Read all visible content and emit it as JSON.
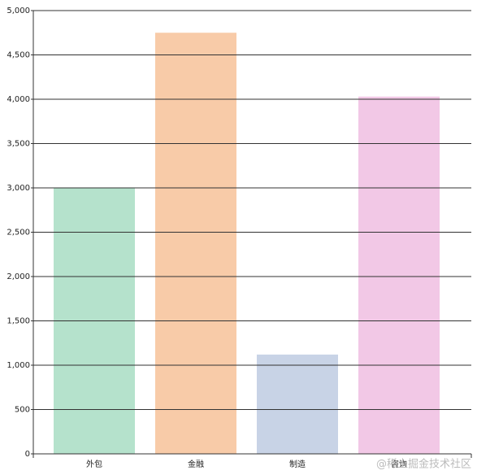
{
  "chart_data": {
    "type": "bar",
    "categories": [
      "外包",
      "金融",
      "制造",
      "咨询"
    ],
    "values": [
      3000,
      4750,
      1120,
      4030
    ],
    "colors": [
      "#b5e2cc",
      "#f8cba8",
      "#c8d3e6",
      "#f2c8e6"
    ],
    "ylim": [
      0,
      5000
    ],
    "yticks": [
      0,
      500,
      {
        "value": 1000,
        "label": "1,000"
      },
      {
        "value": 1500,
        "label": "1,500"
      },
      {
        "value": 2000,
        "label": "2,000"
      },
      {
        "value": 2500,
        "label": "2,500"
      },
      {
        "value": 3000,
        "label": "3,000"
      },
      {
        "value": 3500,
        "label": "3,500"
      },
      {
        "value": 4000,
        "label": "4,000"
      },
      {
        "value": 4500,
        "label": "4,500"
      },
      {
        "value": 5000,
        "label": "5,000"
      }
    ],
    "grid": true,
    "watermark": "@稀土掘金技术社区"
  }
}
